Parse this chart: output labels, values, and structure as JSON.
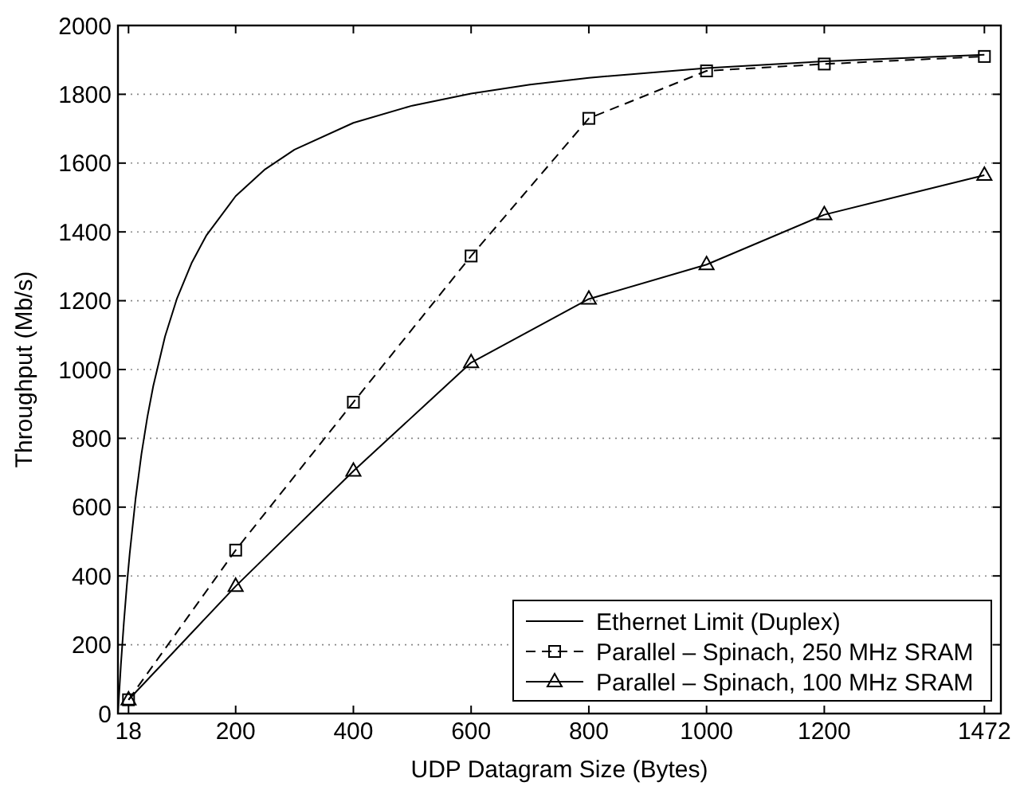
{
  "chart_data": {
    "type": "line",
    "xlabel": "UDP Datagram Size (Bytes)",
    "ylabel": "Throughput (Mb/s)",
    "xlim": [
      0,
      1500
    ],
    "ylim": [
      0,
      2000
    ],
    "xticks": [
      18,
      200,
      400,
      600,
      800,
      1000,
      1200,
      1472
    ],
    "yticks": [
      0,
      200,
      400,
      600,
      800,
      1000,
      1200,
      1400,
      1600,
      1800,
      2000
    ],
    "grid": "y",
    "legend": "bottom right",
    "series": [
      {
        "name": "Ethernet Limit (Duplex)",
        "color": "#000000",
        "marker": "none",
        "line_style": "solid",
        "x": [
          0,
          5,
          10,
          15,
          20,
          30,
          40,
          50,
          60,
          80,
          100,
          125,
          150,
          200,
          250,
          300,
          400,
          500,
          600,
          700,
          800,
          1000,
          1200,
          1472
        ],
        "values": [
          0,
          141,
          263,
          370,
          465,
          625,
          755,
          862,
          952,
          1096,
          1205,
          1309,
          1389,
          1504,
          1582,
          1639,
          1717,
          1767,
          1802,
          1828,
          1848,
          1876,
          1896,
          1915
        ]
      },
      {
        "name": "Parallel – Spinach, 250 MHz SRAM",
        "color": "#000000",
        "marker": "square",
        "line_style": "dashed",
        "x": [
          18,
          200,
          400,
          600,
          800,
          1000,
          1200,
          1472
        ],
        "values": [
          40,
          475,
          905,
          1330,
          1730,
          1868,
          1888,
          1910
        ]
      },
      {
        "name": "Parallel – Spinach, 100 MHz SRAM",
        "color": "#000000",
        "marker": "triangle",
        "line_style": "solid",
        "x": [
          18,
          200,
          400,
          600,
          800,
          1000,
          1200,
          1472
        ],
        "values": [
          40,
          370,
          705,
          1020,
          1205,
          1305,
          1450,
          1565
        ]
      }
    ]
  }
}
